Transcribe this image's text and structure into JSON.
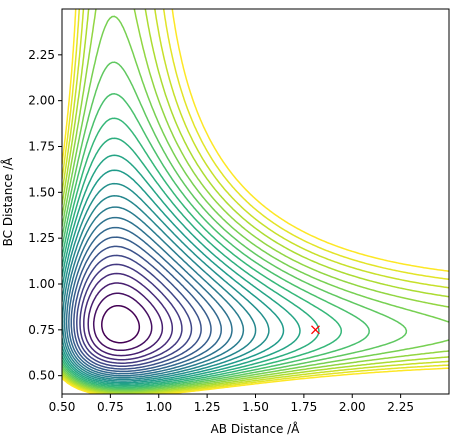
{
  "chart_data": {
    "type": "contour",
    "title": "",
    "xlabel": "AB Distance /Å",
    "ylabel": "BC Distance /Å",
    "xlim": [
      0.5,
      2.5
    ],
    "ylim": [
      0.4,
      2.5
    ],
    "x_ticks": [
      "0.50",
      "0.75",
      "1.00",
      "1.25",
      "1.50",
      "1.75",
      "2.00",
      "2.25"
    ],
    "y_ticks": [
      "0.50",
      "0.75",
      "1.00",
      "1.25",
      "1.50",
      "1.75",
      "2.00",
      "2.25"
    ],
    "colormap": "viridis",
    "levels": 25,
    "grid": false,
    "marker": {
      "x": 1.81,
      "y": 0.75,
      "symbol": "x",
      "color": "#ff0000"
    }
  }
}
